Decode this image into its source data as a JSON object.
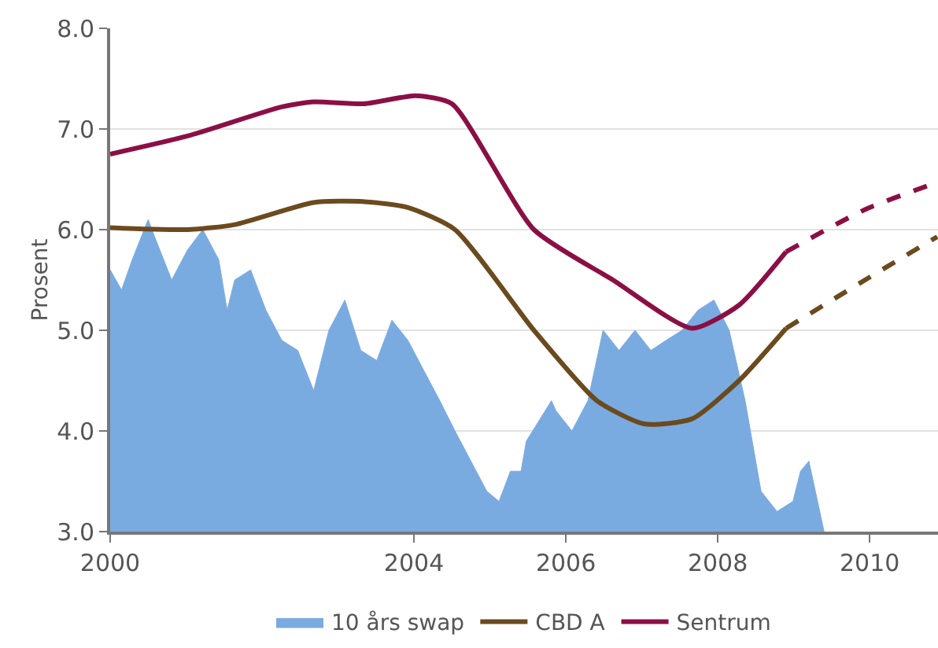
{
  "chart_data": {
    "type": "line",
    "ylabel": "Prosent",
    "xlim": [
      2000,
      2010.9
    ],
    "xticks": [
      2000,
      2004,
      2006,
      2008,
      2010
    ],
    "ylim": [
      3,
      8
    ],
    "yticks": [
      {
        "value": 3,
        "label": "3.0"
      },
      {
        "value": 4,
        "label": "4.0"
      },
      {
        "value": 5,
        "label": "5.0"
      },
      {
        "value": 6,
        "label": "6.0"
      },
      {
        "value": 7,
        "label": "7.0"
      },
      {
        "value": 8,
        "label": "8.0"
      }
    ],
    "grid": "y",
    "legend": "bottom",
    "series": [
      {
        "name": "10 års swap",
        "type": "area",
        "color": "#7aabe0",
        "x": [
          2000,
          2000.15,
          2000.29,
          2000.5,
          2000.6,
          2000.81,
          2001.02,
          2001.22,
          2001.43,
          2001.54,
          2001.64,
          2001.85,
          2002.05,
          2002.26,
          2002.47,
          2002.68,
          2002.88,
          2003.09,
          2003.3,
          2003.51,
          2003.71,
          2003.92,
          2004.13,
          2004.34,
          2004.54,
          2004.75,
          2004.96,
          2005.12,
          2005.27,
          2005.41,
          2005.48,
          2005.81,
          2005.87,
          2006.08,
          2006.29,
          2006.49,
          2006.7,
          2006.91,
          2007.12,
          2007.32,
          2007.53,
          2007.74,
          2007.95,
          2008.15,
          2008.36,
          2008.57,
          2008.78,
          2008.99,
          2009.09,
          2009.2,
          2009.4
        ],
        "values": [
          5.6,
          5.4,
          5.7,
          6.1,
          5.9,
          5.5,
          5.8,
          6.0,
          5.7,
          5.2,
          5.5,
          5.6,
          5.2,
          4.9,
          4.8,
          4.4,
          5.0,
          5.3,
          4.8,
          4.7,
          5.1,
          4.9,
          4.6,
          4.3,
          4.0,
          3.7,
          3.4,
          3.3,
          3.6,
          3.6,
          3.9,
          4.3,
          4.2,
          4.0,
          4.3,
          5.0,
          4.8,
          5.0,
          4.8,
          4.9,
          5.0,
          5.2,
          5.3,
          5.0,
          4.3,
          3.4,
          3.2,
          3.3,
          3.6,
          3.7,
          3.0
        ]
      },
      {
        "name": "CBD A",
        "color": "#6b4a1e",
        "line_style": "solid",
        "x": [
          2000,
          2001.02,
          2001.64,
          2002.68,
          2003.32,
          2003.92,
          2004.54,
          2005.58,
          2006.41,
          2007.03,
          2007.66,
          2008.28,
          2008.9
        ],
        "values": [
          6.02,
          6.0,
          6.05,
          6.27,
          6.28,
          6.22,
          6.0,
          5.0,
          4.3,
          4.07,
          4.12,
          4.5,
          5.02
        ]
      },
      {
        "name": "Sentrum",
        "color": "#8b0f45",
        "line_style": "solid",
        "x": [
          2000,
          2001.02,
          2002.26,
          2002.68,
          2003.34,
          2004.02,
          2004.5,
          2005.58,
          2006.62,
          2007.66,
          2008.28,
          2008.9
        ],
        "values": [
          6.75,
          6.93,
          7.22,
          7.27,
          7.25,
          7.33,
          7.25,
          6.0,
          5.5,
          5.02,
          5.25,
          5.78
        ]
      },
      {
        "color": "#6b4a1e",
        "line_style": "dashed",
        "x": [
          2008.9,
          2009.94,
          2010.89
        ],
        "values": [
          5.02,
          5.5,
          5.93
        ]
      },
      {
        "color": "#8b0f45",
        "line_style": "dashed",
        "x": [
          2008.9,
          2009.94,
          2010.89
        ],
        "values": [
          5.78,
          6.2,
          6.47
        ]
      }
    ]
  }
}
